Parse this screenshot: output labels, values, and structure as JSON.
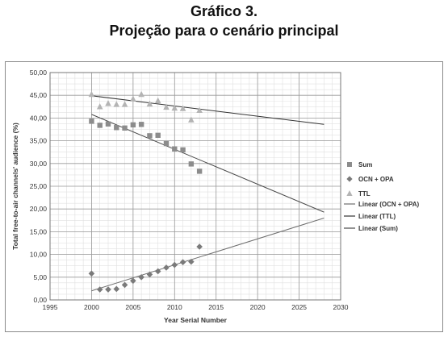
{
  "heading": {
    "line1": "Gráfico 3.",
    "line2": "Projeção para o cenário principal"
  },
  "chart_data": {
    "type": "scatter",
    "xlabel": "Year Serial Number",
    "ylabel": "Total free-to-air channels' audience (%)",
    "xlim": [
      1995,
      2030
    ],
    "ylim": [
      0,
      50
    ],
    "x_ticks": [
      "1995",
      "2000",
      "2005",
      "2010",
      "2015",
      "2020",
      "2025",
      "2030"
    ],
    "y_ticks": [
      "0,00",
      "5,00",
      "10,00",
      "15,00",
      "20,00",
      "25,00",
      "30,00",
      "35,00",
      "40,00",
      "45,00",
      "50,00"
    ],
    "grid": true,
    "legend_position": "right",
    "series": [
      {
        "name": "Sum",
        "marker": "square",
        "color": "#8c8c8c",
        "x": [
          2000,
          2001,
          2002,
          2003,
          2004,
          2005,
          2006,
          2007,
          2008,
          2009,
          2010,
          2011,
          2012,
          2013
        ],
        "y": [
          39.3,
          38.4,
          38.7,
          37.9,
          37.8,
          38.5,
          38.6,
          36.1,
          36.2,
          34.4,
          33.2,
          33.0,
          29.9,
          28.3
        ]
      },
      {
        "name": "OCN + OPA",
        "marker": "diamond",
        "color": "#7a7a7a",
        "x": [
          2000,
          2001,
          2002,
          2003,
          2004,
          2005,
          2006,
          2007,
          2008,
          2009,
          2010,
          2011,
          2012,
          2013
        ],
        "y": [
          5.8,
          2.3,
          2.3,
          2.4,
          3.3,
          4.2,
          5.0,
          5.6,
          6.3,
          7.1,
          7.7,
          8.3,
          8.4,
          11.7
        ]
      },
      {
        "name": "TTL",
        "marker": "triangle",
        "color": "#b4b4b4",
        "x": [
          2000,
          2001,
          2002,
          2003,
          2004,
          2005,
          2006,
          2007,
          2008,
          2009,
          2010,
          2011,
          2012,
          2013
        ],
        "y": [
          45.2,
          42.5,
          43.2,
          43.0,
          43.0,
          44.2,
          45.2,
          43.1,
          43.8,
          42.4,
          42.2,
          42.1,
          39.6,
          41.7
        ]
      }
    ],
    "trendlines": [
      {
        "name": "Linear (OCN + OPA)",
        "x": [
          2000,
          2028
        ],
        "y": [
          2.0,
          18.0
        ],
        "color": "#6e6e6e"
      },
      {
        "name": "Linear (TTL)",
        "x": [
          2000,
          2028
        ],
        "y": [
          44.9,
          38.6
        ],
        "color": "#333333"
      },
      {
        "name": "Linear (Sum)",
        "x": [
          2000,
          2028
        ],
        "y": [
          40.8,
          19.3
        ],
        "color": "#4a4a4a"
      }
    ]
  }
}
